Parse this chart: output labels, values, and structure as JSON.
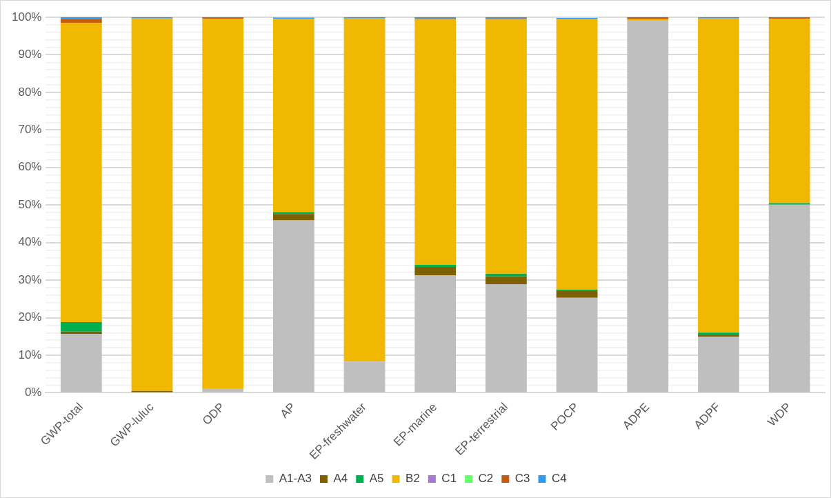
{
  "chart_data": {
    "type": "bar",
    "stacked": true,
    "categories": [
      "GWP-total",
      "GWP-luluc",
      "ODP",
      "AP",
      "EP-freshwater",
      "EP-marine",
      "EP-terrestrial",
      "POCP",
      "ADPE",
      "ADPF",
      "WDP"
    ],
    "series": [
      {
        "name": "A1-A3",
        "color": "#bfbfbf",
        "values": [
          15.7,
          0,
          1.2,
          45.9,
          8.3,
          31.3,
          28.9,
          25.3,
          99.1,
          14.9,
          50.1
        ]
      },
      {
        "name": "A4",
        "color": "#7f6000",
        "values": [
          0.6,
          0.5,
          0,
          1.7,
          0,
          2.2,
          2.1,
          1.8,
          0,
          0.4,
          0
        ]
      },
      {
        "name": "A5",
        "color": "#00b050",
        "values": [
          2.5,
          0,
          0,
          0.5,
          0,
          0.6,
          0.7,
          0.4,
          0,
          0.7,
          0.4
        ]
      },
      {
        "name": "B2",
        "color": "#f0b800",
        "values": [
          79.7,
          99.2,
          98.4,
          51.5,
          91.4,
          65.3,
          67.7,
          72.0,
          0.4,
          83.7,
          49.1
        ]
      },
      {
        "name": "C1",
        "color": "#a875d6",
        "values": [
          0,
          0,
          0,
          0,
          0,
          0,
          0,
          0,
          0,
          0,
          0
        ]
      },
      {
        "name": "C2",
        "color": "#66ff66",
        "values": [
          0,
          0,
          0,
          0,
          0,
          0,
          0,
          0,
          0,
          0,
          0
        ]
      },
      {
        "name": "C3",
        "color": "#c55a11",
        "values": [
          1.1,
          0,
          0.4,
          null,
          0,
          0.3,
          0.3,
          null,
          0.5,
          0,
          0.4
        ]
      },
      {
        "name": "C4",
        "color": "#2e9bf0",
        "values": [
          0.4,
          0.3,
          0,
          0.3,
          0.3,
          0.3,
          0.3,
          0.3,
          0,
          0.3,
          0
        ]
      }
    ],
    "ylim": [
      0,
      100
    ],
    "yticks": [
      {
        "value": 0,
        "label": "0%"
      },
      {
        "value": 2,
        "label": null
      },
      {
        "value": 4,
        "label": null
      },
      {
        "value": 6,
        "label": null
      },
      {
        "value": 8,
        "label": null
      },
      {
        "value": 10,
        "label": "10%"
      },
      {
        "value": 12,
        "label": null
      },
      {
        "value": 14,
        "label": null
      },
      {
        "value": 16,
        "label": null
      },
      {
        "value": 18,
        "label": null
      },
      {
        "value": 20,
        "label": "20%"
      },
      {
        "value": 22,
        "label": null
      },
      {
        "value": 24,
        "label": null
      },
      {
        "value": 26,
        "label": null
      },
      {
        "value": 28,
        "label": null
      },
      {
        "value": 30,
        "label": "30%"
      },
      {
        "value": 32,
        "label": null
      },
      {
        "value": 34,
        "label": null
      },
      {
        "value": 36,
        "label": null
      },
      {
        "value": 38,
        "label": null
      },
      {
        "value": 40,
        "label": "40%"
      },
      {
        "value": 42,
        "label": null
      },
      {
        "value": 44,
        "label": null
      },
      {
        "value": 46,
        "label": null
      },
      {
        "value": 48,
        "label": null
      },
      {
        "value": 50,
        "label": "50%"
      },
      {
        "value": 52,
        "label": null
      },
      {
        "value": 54,
        "label": null
      },
      {
        "value": 56,
        "label": null
      },
      {
        "value": 58,
        "label": null
      },
      {
        "value": 60,
        "label": "60%"
      },
      {
        "value": 62,
        "label": null
      },
      {
        "value": 64,
        "label": null
      },
      {
        "value": 66,
        "label": null
      },
      {
        "value": 68,
        "label": null
      },
      {
        "value": 70,
        "label": "70%"
      },
      {
        "value": 72,
        "label": null
      },
      {
        "value": 74,
        "label": null
      },
      {
        "value": 76,
        "label": null
      },
      {
        "value": 78,
        "label": null
      },
      {
        "value": 80,
        "label": "80%"
      },
      {
        "value": 82,
        "label": null
      },
      {
        "value": 84,
        "label": null
      },
      {
        "value": 86,
        "label": null
      },
      {
        "value": 88,
        "label": null
      },
      {
        "value": 90,
        "label": "90%"
      },
      {
        "value": 92,
        "label": null
      },
      {
        "value": 94,
        "label": null
      },
      {
        "value": 96,
        "label": null
      },
      {
        "value": 98,
        "label": null
      },
      {
        "value": 100,
        "label": "100%"
      }
    ],
    "grid": "y",
    "legend": "bottom"
  }
}
